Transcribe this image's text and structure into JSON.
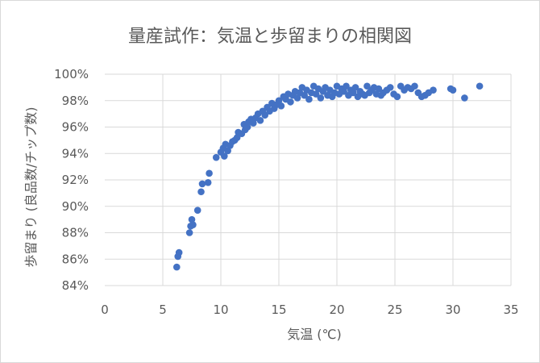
{
  "chart_data": {
    "type": "scatter",
    "title": "量産試作：気温と歩留まりの相関図",
    "xlabel": "気温 (℃)",
    "ylabel": "歩留まり (良品数/チップ数)",
    "xlim": [
      0,
      35
    ],
    "ylim": [
      0.84,
      1.0
    ],
    "x_ticks": [
      0,
      5,
      10,
      15,
      20,
      25,
      30,
      35
    ],
    "y_ticks": [
      0.84,
      0.86,
      0.88,
      0.9,
      0.92,
      0.94,
      0.96,
      0.98,
      1.0
    ],
    "x_tick_labels": [
      "0",
      "5",
      "10",
      "15",
      "20",
      "25",
      "30",
      "35"
    ],
    "y_tick_labels": [
      "84%",
      "86%",
      "88%",
      "90%",
      "92%",
      "94%",
      "96%",
      "98%",
      "100%"
    ],
    "grid": true,
    "legend": "none",
    "point_color": "#4472c4",
    "series": [
      {
        "points": [
          [
            6.2,
            0.854
          ],
          [
            6.3,
            0.862
          ],
          [
            6.4,
            0.865
          ],
          [
            7.3,
            0.88
          ],
          [
            7.4,
            0.885
          ],
          [
            7.5,
            0.89
          ],
          [
            7.6,
            0.886
          ],
          [
            8.0,
            0.897
          ],
          [
            8.3,
            0.911
          ],
          [
            8.4,
            0.917
          ],
          [
            8.9,
            0.918
          ],
          [
            9.0,
            0.925
          ],
          [
            9.6,
            0.937
          ],
          [
            10.0,
            0.941
          ],
          [
            10.2,
            0.944
          ],
          [
            10.3,
            0.938
          ],
          [
            10.4,
            0.947
          ],
          [
            10.6,
            0.942
          ],
          [
            10.8,
            0.946
          ],
          [
            11.0,
            0.949
          ],
          [
            11.2,
            0.95
          ],
          [
            11.4,
            0.952
          ],
          [
            11.5,
            0.956
          ],
          [
            11.8,
            0.955
          ],
          [
            12.0,
            0.962
          ],
          [
            12.1,
            0.958
          ],
          [
            12.3,
            0.96
          ],
          [
            12.4,
            0.964
          ],
          [
            12.6,
            0.966
          ],
          [
            12.8,
            0.963
          ],
          [
            13.0,
            0.967
          ],
          [
            13.2,
            0.97
          ],
          [
            13.4,
            0.965
          ],
          [
            13.6,
            0.972
          ],
          [
            13.8,
            0.969
          ],
          [
            14.0,
            0.975
          ],
          [
            14.2,
            0.972
          ],
          [
            14.4,
            0.978
          ],
          [
            14.6,
            0.974
          ],
          [
            14.8,
            0.977
          ],
          [
            15.0,
            0.98
          ],
          [
            15.2,
            0.976
          ],
          [
            15.4,
            0.983
          ],
          [
            15.6,
            0.981
          ],
          [
            15.8,
            0.985
          ],
          [
            16.0,
            0.979
          ],
          [
            16.2,
            0.984
          ],
          [
            16.4,
            0.987
          ],
          [
            16.6,
            0.982
          ],
          [
            16.8,
            0.986
          ],
          [
            17.0,
            0.99
          ],
          [
            17.2,
            0.984
          ],
          [
            17.4,
            0.988
          ],
          [
            17.6,
            0.981
          ],
          [
            17.8,
            0.986
          ],
          [
            18.0,
            0.991
          ],
          [
            18.2,
            0.985
          ],
          [
            18.4,
            0.989
          ],
          [
            18.6,
            0.982
          ],
          [
            18.8,
            0.987
          ],
          [
            19.0,
            0.99
          ],
          [
            19.2,
            0.984
          ],
          [
            19.4,
            0.988
          ],
          [
            19.6,
            0.983
          ],
          [
            19.8,
            0.986
          ],
          [
            20.0,
            0.991
          ],
          [
            20.2,
            0.985
          ],
          [
            20.4,
            0.989
          ],
          [
            20.6,
            0.987
          ],
          [
            20.8,
            0.991
          ],
          [
            21.0,
            0.984
          ],
          [
            21.2,
            0.988
          ],
          [
            21.4,
            0.986
          ],
          [
            21.6,
            0.99
          ],
          [
            21.8,
            0.983
          ],
          [
            22.0,
            0.987
          ],
          [
            22.2,
            0.985
          ],
          [
            22.4,
            0.984
          ],
          [
            22.6,
            0.991
          ],
          [
            22.8,
            0.986
          ],
          [
            23.0,
            0.988
          ],
          [
            23.2,
            0.99
          ],
          [
            23.4,
            0.985
          ],
          [
            23.6,
            0.989
          ],
          [
            23.8,
            0.984
          ],
          [
            24.0,
            0.986
          ],
          [
            24.3,
            0.988
          ],
          [
            24.6,
            0.99
          ],
          [
            24.9,
            0.985
          ],
          [
            25.2,
            0.983
          ],
          [
            25.5,
            0.991
          ],
          [
            25.8,
            0.988
          ],
          [
            26.1,
            0.99
          ],
          [
            26.4,
            0.989
          ],
          [
            26.7,
            0.991
          ],
          [
            27.0,
            0.986
          ],
          [
            27.3,
            0.983
          ],
          [
            27.6,
            0.984
          ],
          [
            27.9,
            0.986
          ],
          [
            28.3,
            0.988
          ],
          [
            29.8,
            0.989
          ],
          [
            30.0,
            0.988
          ],
          [
            31.0,
            0.982
          ],
          [
            32.3,
            0.991
          ]
        ]
      }
    ]
  }
}
